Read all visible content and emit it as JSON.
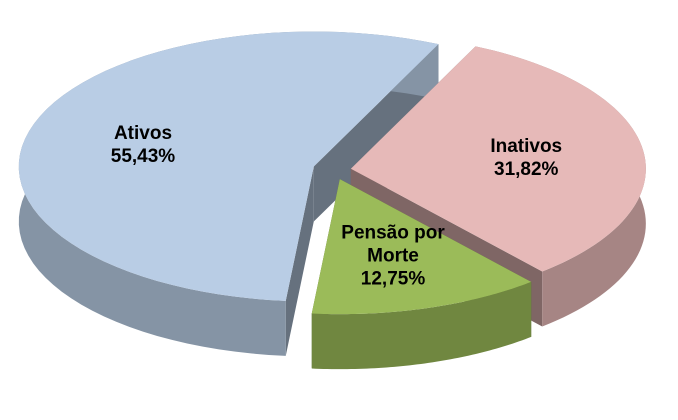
{
  "chart_data": {
    "type": "pie",
    "categories": [
      "Inativos",
      "Pensão por Morte",
      "Ativos"
    ],
    "values": [
      31.82,
      12.75,
      55.43
    ],
    "value_labels": [
      "31,82%",
      "12,75%",
      "55,43%"
    ],
    "colors": [
      "#e6b9b8",
      "#9bbb59",
      "#b9cde5"
    ]
  }
}
